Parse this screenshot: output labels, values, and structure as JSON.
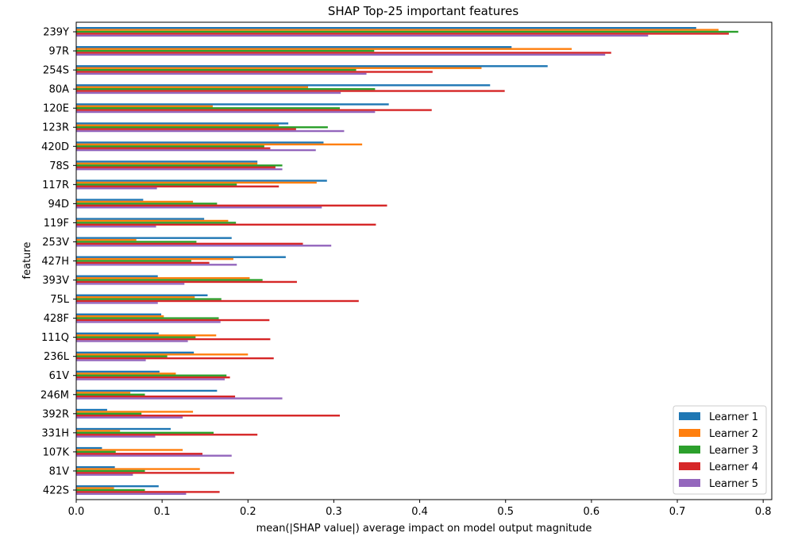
{
  "chart_data": {
    "type": "bar",
    "orientation": "horizontal",
    "title": "SHAP Top-25 important features",
    "xlabel": "mean(|SHAP value|) average impact on model output magnitude",
    "ylabel": "feature",
    "xlim": [
      0.0,
      0.81
    ],
    "xticks": [
      0.0,
      0.1,
      0.2,
      0.3,
      0.4,
      0.5,
      0.6,
      0.7,
      0.8
    ],
    "xtick_labels": [
      "0.0",
      "0.1",
      "0.2",
      "0.3",
      "0.4",
      "0.5",
      "0.6",
      "0.7",
      "0.8"
    ],
    "grid": false,
    "legend_position": "lower-right",
    "categories": [
      "239Y",
      "97R",
      "254S",
      "80A",
      "120E",
      "123R",
      "420D",
      "78S",
      "117R",
      "94D",
      "119F",
      "253V",
      "427H",
      "393V",
      "75L",
      "428F",
      "111Q",
      "236L",
      "61V",
      "246M",
      "392R",
      "331H",
      "107K",
      "81V",
      "422S"
    ],
    "series": [
      {
        "name": "Learner 1",
        "color": "#1f77b4",
        "values": [
          0.722,
          0.507,
          0.549,
          0.482,
          0.364,
          0.247,
          0.288,
          0.211,
          0.292,
          0.078,
          0.149,
          0.181,
          0.244,
          0.095,
          0.153,
          0.099,
          0.096,
          0.137,
          0.097,
          0.164,
          0.036,
          0.11,
          0.03,
          0.045,
          0.096
        ]
      },
      {
        "name": "Learner 2",
        "color": "#ff7f0e",
        "values": [
          0.748,
          0.577,
          0.472,
          0.27,
          0.159,
          0.236,
          0.333,
          0.211,
          0.28,
          0.136,
          0.177,
          0.07,
          0.183,
          0.202,
          0.138,
          0.102,
          0.163,
          0.2,
          0.116,
          0.063,
          0.136,
          0.051,
          0.124,
          0.144,
          0.044
        ]
      },
      {
        "name": "Learner 3",
        "color": "#2ca02c",
        "values": [
          0.771,
          0.347,
          0.326,
          0.348,
          0.307,
          0.293,
          0.219,
          0.24,
          0.187,
          0.164,
          0.186,
          0.14,
          0.134,
          0.217,
          0.169,
          0.166,
          0.139,
          0.106,
          0.175,
          0.08,
          0.076,
          0.16,
          0.046,
          0.08,
          0.08
        ]
      },
      {
        "name": "Learner 4",
        "color": "#d62728",
        "values": [
          0.76,
          0.623,
          0.415,
          0.499,
          0.414,
          0.256,
          0.226,
          0.232,
          0.236,
          0.362,
          0.349,
          0.264,
          0.155,
          0.257,
          0.329,
          0.225,
          0.226,
          0.23,
          0.179,
          0.185,
          0.307,
          0.211,
          0.147,
          0.184,
          0.167
        ]
      },
      {
        "name": "Learner 5",
        "color": "#9467bd",
        "values": [
          0.666,
          0.616,
          0.338,
          0.308,
          0.348,
          0.312,
          0.279,
          0.24,
          0.094,
          0.286,
          0.093,
          0.297,
          0.187,
          0.126,
          0.095,
          0.168,
          0.13,
          0.081,
          0.173,
          0.24,
          0.124,
          0.092,
          0.181,
          0.066,
          0.128
        ]
      }
    ]
  }
}
